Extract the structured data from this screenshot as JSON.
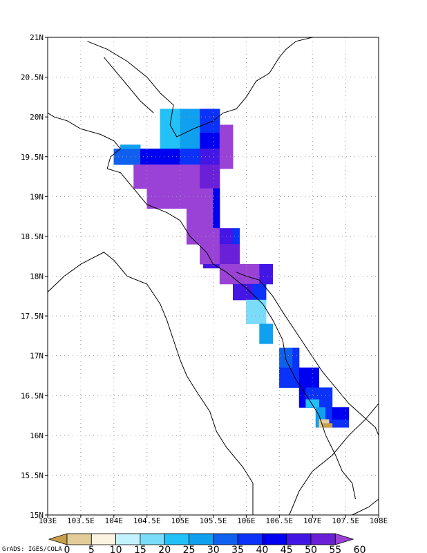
{
  "map": {
    "lon_ticks": [
      "103E",
      "103.5E",
      "104E",
      "104.5E",
      "105E",
      "105.5E",
      "106E",
      "106.5E",
      "107E",
      "107.5E",
      "108E"
    ],
    "lat_ticks": [
      "15N",
      "15.5N",
      "16N",
      "16.5N",
      "17N",
      "17.5N",
      "18N",
      "18.5N",
      "19N",
      "19.5N",
      "20N",
      "20.5N",
      "21N"
    ],
    "lon_range": [
      103,
      108
    ],
    "lat_range": [
      15,
      21
    ],
    "grid": true
  },
  "colorbar": {
    "labels": [
      "0",
      "5",
      "10",
      "15",
      "20",
      "25",
      "30",
      "35",
      "40",
      "45",
      "50",
      "55",
      "60"
    ],
    "colors": [
      "#c8a04b",
      "#e4cc98",
      "#fcf2e0",
      "#c2f2fe",
      "#7bdcfa",
      "#22c1f8",
      "#10a0f0",
      "#1060f0",
      "#0a32f8",
      "#0000f0",
      "#4416e6",
      "#6a20d6",
      "#9a42d6"
    ]
  },
  "credit": "GrADS: IGES/COLA"
}
